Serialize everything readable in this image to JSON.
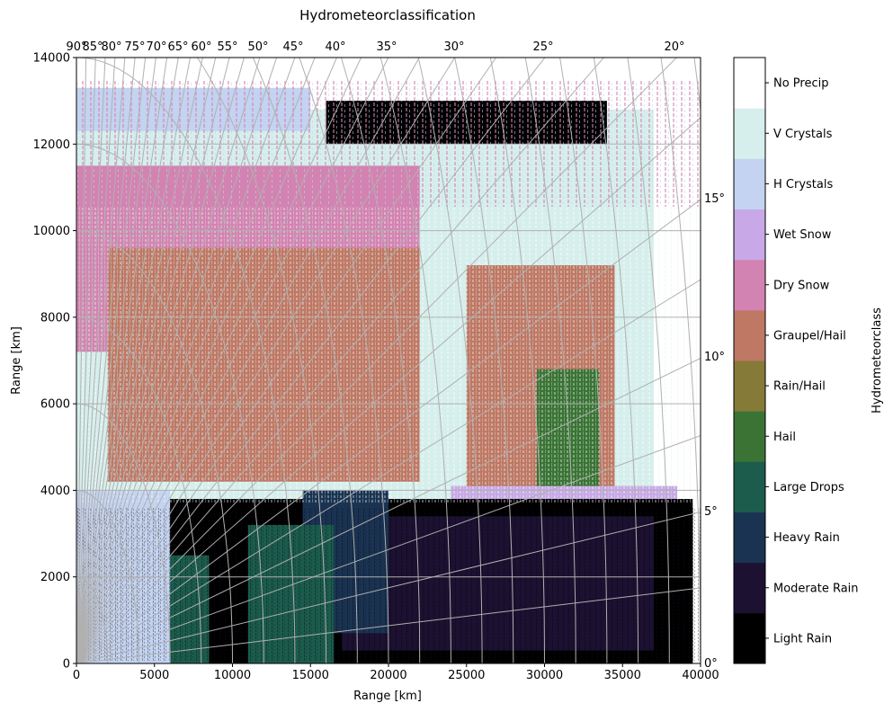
{
  "chart_data": {
    "type": "heatmap",
    "title": "Hydrometeorclassification",
    "xlabel": "Range [km]",
    "ylabel": "Range [km]",
    "xlim": [
      0,
      40000
    ],
    "ylim": [
      0,
      14000
    ],
    "x_ticks": [
      0,
      5000,
      10000,
      15000,
      20000,
      25000,
      30000,
      35000,
      40000
    ],
    "y_ticks": [
      0,
      2000,
      4000,
      6000,
      8000,
      10000,
      12000,
      14000
    ],
    "grid": true,
    "elevation_labels_top": [
      "90°",
      "85°",
      "80°",
      "75°",
      "70°",
      "65°",
      "60°",
      "55°",
      "50°",
      "45°",
      "40°",
      "35°",
      "30°",
      "25°",
      "20°"
    ],
    "elevation_labels_right": [
      "0°",
      "5°",
      "10°",
      "15°"
    ],
    "colorbar": {
      "label": "Hydrometeorclass",
      "classes": [
        {
          "name": "Light Rain",
          "color": "#000000"
        },
        {
          "name": "Moderate Rain",
          "color": "#1c1131"
        },
        {
          "name": "Heavy Rain",
          "color": "#1a3352"
        },
        {
          "name": "Large Drops",
          "color": "#1b5c4c"
        },
        {
          "name": "Hail",
          "color": "#3a7334"
        },
        {
          "name": "Rain/Hail",
          "color": "#857a38"
        },
        {
          "name": "Graupel/Hail",
          "color": "#bf7864"
        },
        {
          "name": "Dry Snow",
          "color": "#d383b1"
        },
        {
          "name": "Wet Snow",
          "color": "#c8a8e6"
        },
        {
          "name": "H Crystals",
          "color": "#c3d3f1"
        },
        {
          "name": "V Crystals",
          "color": "#d6efec"
        },
        {
          "name": "No Precip",
          "color": "#ffffff"
        }
      ]
    },
    "regions": [
      {
        "class": "V Crystals",
        "x": [
          0,
          37000
        ],
        "y": [
          3800,
          12800
        ]
      },
      {
        "class": "Dry Snow",
        "x": [
          0,
          22000
        ],
        "y": [
          7200,
          11500
        ]
      },
      {
        "class": "Graupel/Hail",
        "x": [
          2000,
          22000
        ],
        "y": [
          4200,
          9600
        ]
      },
      {
        "class": "Graupel/Hail",
        "x": [
          25000,
          34500
        ],
        "y": [
          3600,
          9200
        ]
      },
      {
        "class": "Hail",
        "x": [
          29500,
          33500
        ],
        "y": [
          1000,
          6800
        ]
      },
      {
        "class": "Wet Snow",
        "x": [
          24000,
          38500
        ],
        "y": [
          3100,
          4100
        ]
      },
      {
        "class": "Light Rain",
        "x": [
          0,
          39500
        ],
        "y": [
          0,
          3800
        ]
      },
      {
        "class": "Moderate Rain",
        "x": [
          17000,
          37000
        ],
        "y": [
          300,
          3400
        ]
      },
      {
        "class": "Heavy Rain",
        "x": [
          14500,
          20000
        ],
        "y": [
          700,
          4000
        ]
      },
      {
        "class": "Large Drops",
        "x": [
          4000,
          8500
        ],
        "y": [
          0,
          2500
        ]
      },
      {
        "class": "Large Drops",
        "x": [
          11000,
          16500
        ],
        "y": [
          0,
          3200
        ]
      },
      {
        "class": "H Crystals",
        "x": [
          0,
          6000
        ],
        "y": [
          0,
          4000
        ]
      },
      {
        "class": "H Crystals",
        "x": [
          0,
          15000
        ],
        "y": [
          12300,
          13300
        ]
      },
      {
        "class": "Light Rain",
        "x": [
          16000,
          34000
        ],
        "y": [
          12000,
          13000
        ]
      }
    ]
  }
}
